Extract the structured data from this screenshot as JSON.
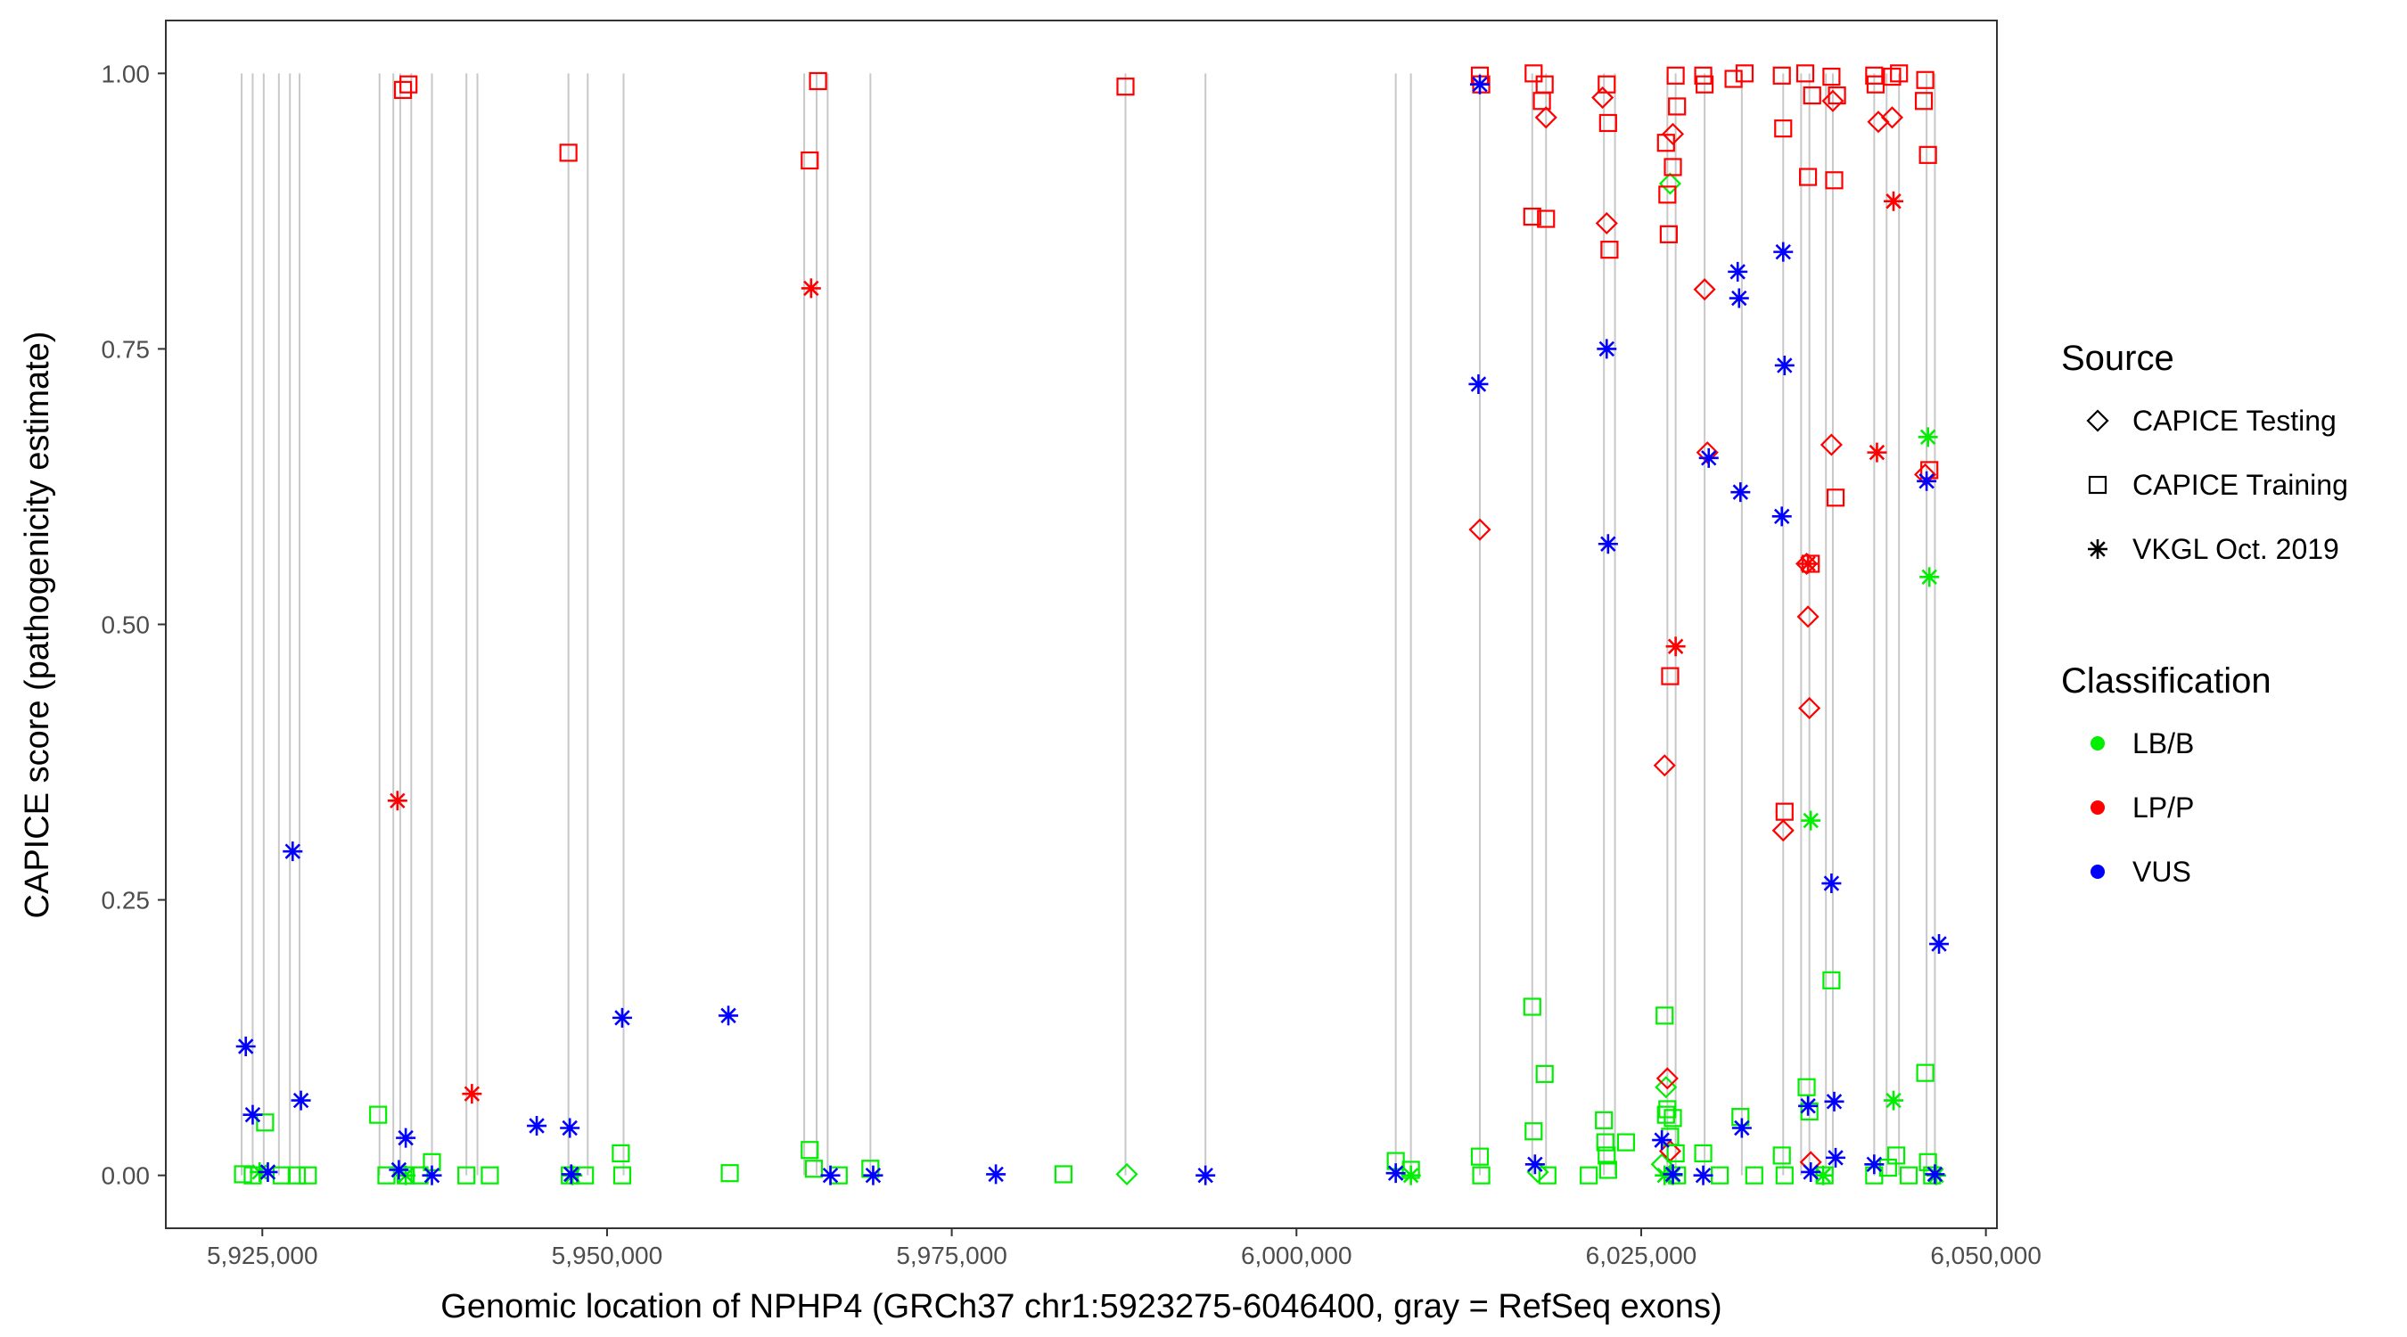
{
  "chart_data": {
    "type": "scatter",
    "xlabel": "Genomic location of NPHP4 (GRCh37 chr1:5923275-6046400, gray = RefSeq exons)",
    "ylabel": "CAPICE score (pathogenicity estimate)",
    "xlim": [
      5918000,
      6050800
    ],
    "ylim": [
      -0.048,
      1.048
    ],
    "x_ticks": [
      5925000,
      5950000,
      5975000,
      6000000,
      6025000,
      6050000
    ],
    "x_tick_labels": [
      "5,925,000",
      "5,950,000",
      "5,975,000",
      "6,000,000",
      "6,025,000",
      "6,050,000"
    ],
    "y_ticks": [
      0,
      0.25,
      0.5,
      0.75,
      1
    ],
    "y_tick_labels": [
      "0.00",
      "0.25",
      "0.50",
      "0.75",
      "1.00"
    ],
    "exons": [
      5923500,
      5924300,
      5925100,
      5926200,
      5927000,
      5927700,
      5933500,
      5934500,
      5935000,
      5935800,
      5937300,
      5939800,
      5940600,
      5947200,
      5948600,
      5951200,
      5964300,
      5965200,
      5966000,
      5969100,
      5987600,
      5993400,
      6007200,
      6008300,
      6013300,
      6017100,
      6018100,
      6022300,
      6023100,
      6026900,
      6027500,
      6029600,
      6032300,
      6035300,
      6036600,
      6037200,
      6038400,
      6038900,
      6041900,
      6042800,
      6043700,
      6045700,
      6046300
    ],
    "legend": {
      "source_title": "Source",
      "source_items": [
        "CAPICE Testing",
        "CAPICE Training",
        "VKGL Oct. 2019"
      ],
      "class_title": "Classification",
      "class_items": [
        "LB/B",
        "LP/P",
        "VUS"
      ],
      "class_colors": [
        "#00ee00",
        "#ff0000",
        "#0000ff"
      ]
    },
    "series": [
      {
        "name": "CAPICE Testing - LB/B",
        "shape": "diamond",
        "color": "#00ee00",
        "points": [
          [
            5987700,
            0.001
          ],
          [
            6026800,
            0.08
          ],
          [
            6027100,
            0.9
          ],
          [
            6017500,
            0.003
          ],
          [
            6026500,
            0.01
          ]
        ]
      },
      {
        "name": "CAPICE Testing - LP/P",
        "shape": "diamond",
        "color": "#ff0000",
        "points": [
          [
            6013300,
            0.586
          ],
          [
            6018100,
            0.96
          ],
          [
            6022500,
            0.864
          ],
          [
            6026700,
            0.372
          ],
          [
            6026900,
            0.088
          ],
          [
            6027100,
            0.022
          ],
          [
            6027300,
            0.945
          ],
          [
            6029600,
            0.804
          ],
          [
            6029800,
            0.656
          ],
          [
            6035300,
            0.313
          ],
          [
            6037000,
            0.555
          ],
          [
            6037100,
            0.507
          ],
          [
            6037200,
            0.424
          ],
          [
            6037300,
            0.012
          ],
          [
            6038800,
            0.663
          ],
          [
            6042200,
            0.956
          ],
          [
            6043200,
            0.96
          ],
          [
            6045600,
            0.636
          ],
          [
            6022200,
            0.978
          ],
          [
            6038900,
            0.975
          ]
        ]
      },
      {
        "name": "CAPICE Training - LB/B",
        "shape": "square",
        "color": "#00ee00",
        "points": [
          [
            5923600,
            0.001
          ],
          [
            5924300,
            0.0
          ],
          [
            5925200,
            0.048
          ],
          [
            5926400,
            0.0
          ],
          [
            5927500,
            0.0
          ],
          [
            5928300,
            0.0
          ],
          [
            5933400,
            0.055
          ],
          [
            5934000,
            0.0
          ],
          [
            5935400,
            0.0
          ],
          [
            5936400,
            0.0
          ],
          [
            5937300,
            0.012
          ],
          [
            5939800,
            0.0
          ],
          [
            5941500,
            0.0
          ],
          [
            5947300,
            0.0
          ],
          [
            5948400,
            0.0
          ],
          [
            5951000,
            0.02
          ],
          [
            5951100,
            0.0
          ],
          [
            5958900,
            0.002
          ],
          [
            5964700,
            0.023
          ],
          [
            5965000,
            0.006
          ],
          [
            5966800,
            0.0
          ],
          [
            5969100,
            0.006
          ],
          [
            5983100,
            0.001
          ],
          [
            6007200,
            0.013
          ],
          [
            6008300,
            0.005
          ],
          [
            6013300,
            0.017
          ],
          [
            6013400,
            0.0
          ],
          [
            6017100,
            0.153
          ],
          [
            6017200,
            0.04
          ],
          [
            6018000,
            0.092
          ],
          [
            6018200,
            0.0
          ],
          [
            6021200,
            0.0
          ],
          [
            6022300,
            0.05
          ],
          [
            6022400,
            0.03
          ],
          [
            6022500,
            0.018
          ],
          [
            6022600,
            0.005
          ],
          [
            6023900,
            0.03
          ],
          [
            6026700,
            0.145
          ],
          [
            6026800,
            0.055
          ],
          [
            6026900,
            0.06
          ],
          [
            6027100,
            0.035
          ],
          [
            6027300,
            0.052
          ],
          [
            6027500,
            0.02
          ],
          [
            6027600,
            0.0
          ],
          [
            6029500,
            0.02
          ],
          [
            6030700,
            0.0
          ],
          [
            6032200,
            0.053
          ],
          [
            6033200,
            0.0
          ],
          [
            6035200,
            0.018
          ],
          [
            6035400,
            0.0
          ],
          [
            6037000,
            0.08
          ],
          [
            6037200,
            0.058
          ],
          [
            6038300,
            0.0
          ],
          [
            6038800,
            0.177
          ],
          [
            6041900,
            0.0
          ],
          [
            6042900,
            0.007
          ],
          [
            6043500,
            0.018
          ],
          [
            6044400,
            0.0
          ],
          [
            6045600,
            0.093
          ],
          [
            6045800,
            0.012
          ],
          [
            6046100,
            0.0
          ]
        ]
      },
      {
        "name": "CAPICE Training - LP/P",
        "shape": "square",
        "color": "#ff0000",
        "points": [
          [
            5935200,
            0.985
          ],
          [
            5935600,
            0.99
          ],
          [
            5947200,
            0.928
          ],
          [
            5964700,
            0.921
          ],
          [
            5965300,
            0.993
          ],
          [
            5987600,
            0.988
          ],
          [
            6013300,
            0.998
          ],
          [
            6013400,
            0.99
          ],
          [
            6017200,
            1.0
          ],
          [
            6017100,
            0.87
          ],
          [
            6018100,
            0.868
          ],
          [
            6017800,
            0.975
          ],
          [
            6018000,
            0.99
          ],
          [
            6022500,
            0.99
          ],
          [
            6022600,
            0.955
          ],
          [
            6022700,
            0.84
          ],
          [
            6026800,
            0.937
          ],
          [
            6026900,
            0.89
          ],
          [
            6027000,
            0.854
          ],
          [
            6027100,
            0.453
          ],
          [
            6027300,
            0.915
          ],
          [
            6027500,
            0.998
          ],
          [
            6027600,
            0.97
          ],
          [
            6029500,
            0.998
          ],
          [
            6029600,
            0.99
          ],
          [
            6031700,
            0.995
          ],
          [
            6032500,
            1.0
          ],
          [
            6035200,
            0.998
          ],
          [
            6035300,
            0.95
          ],
          [
            6035400,
            0.33
          ],
          [
            6036900,
            1.0
          ],
          [
            6037100,
            0.906
          ],
          [
            6037300,
            0.555
          ],
          [
            6037400,
            0.98
          ],
          [
            6038800,
            0.997
          ],
          [
            6039000,
            0.903
          ],
          [
            6039100,
            0.615
          ],
          [
            6039200,
            0.98
          ],
          [
            6041900,
            0.998
          ],
          [
            6042000,
            0.99
          ],
          [
            6043200,
            0.997
          ],
          [
            6043700,
            1.0
          ],
          [
            6045600,
            0.994
          ],
          [
            6045800,
            0.926
          ],
          [
            6045900,
            0.64
          ],
          [
            6045500,
            0.975
          ]
        ]
      },
      {
        "name": "VKGL Oct. 2019 - LB/B",
        "shape": "asterisk",
        "color": "#00ee00",
        "points": [
          [
            5924800,
            0.003
          ],
          [
            5935400,
            0.0
          ],
          [
            5947500,
            0.0
          ],
          [
            6008300,
            0.0
          ],
          [
            6026700,
            0.0
          ],
          [
            6027300,
            0.0
          ],
          [
            6037300,
            0.322
          ],
          [
            6038200,
            0.0
          ],
          [
            6043300,
            0.068
          ],
          [
            6045800,
            0.67
          ],
          [
            6045900,
            0.543
          ],
          [
            6046400,
            0.0
          ]
        ]
      },
      {
        "name": "VKGL Oct. 2019 - LP/P",
        "shape": "asterisk",
        "color": "#ff0000",
        "points": [
          [
            5934800,
            0.34
          ],
          [
            5940200,
            0.074
          ],
          [
            5964800,
            0.805
          ],
          [
            6027500,
            0.48
          ],
          [
            6037100,
            0.555
          ],
          [
            6042100,
            0.656
          ],
          [
            6043300,
            0.884
          ]
        ]
      },
      {
        "name": "VKGL Oct. 2019 - VUS",
        "shape": "asterisk",
        "color": "#0000ff",
        "points": [
          [
            5923800,
            0.117
          ],
          [
            5924300,
            0.055
          ],
          [
            5925400,
            0.003
          ],
          [
            5927200,
            0.294
          ],
          [
            5927800,
            0.068
          ],
          [
            5934900,
            0.005
          ],
          [
            5935400,
            0.034
          ],
          [
            5937300,
            0.0
          ],
          [
            5944900,
            0.045
          ],
          [
            5947300,
            0.043
          ],
          [
            5947400,
            0.001
          ],
          [
            5951100,
            0.143
          ],
          [
            5958800,
            0.145
          ],
          [
            5966200,
            0.0
          ],
          [
            5969300,
            0.0
          ],
          [
            5978200,
            0.001
          ],
          [
            5993400,
            0.0
          ],
          [
            6007200,
            0.002
          ],
          [
            6013200,
            0.718
          ],
          [
            6013300,
            0.99
          ],
          [
            6017300,
            0.01
          ],
          [
            6022500,
            0.75
          ],
          [
            6022600,
            0.573
          ],
          [
            6026500,
            0.032
          ],
          [
            6027300,
            0.001
          ],
          [
            6029900,
            0.651
          ],
          [
            6029500,
            0.0
          ],
          [
            6032000,
            0.82
          ],
          [
            6032100,
            0.796
          ],
          [
            6032200,
            0.62
          ],
          [
            6032300,
            0.043
          ],
          [
            6035300,
            0.838
          ],
          [
            6035400,
            0.735
          ],
          [
            6035200,
            0.598
          ],
          [
            6037100,
            0.063
          ],
          [
            6037300,
            0.003
          ],
          [
            6038800,
            0.265
          ],
          [
            6039000,
            0.067
          ],
          [
            6039100,
            0.016
          ],
          [
            6041900,
            0.01
          ],
          [
            6045700,
            0.63
          ],
          [
            6046300,
            0.001
          ],
          [
            6046600,
            0.21
          ]
        ]
      }
    ]
  }
}
